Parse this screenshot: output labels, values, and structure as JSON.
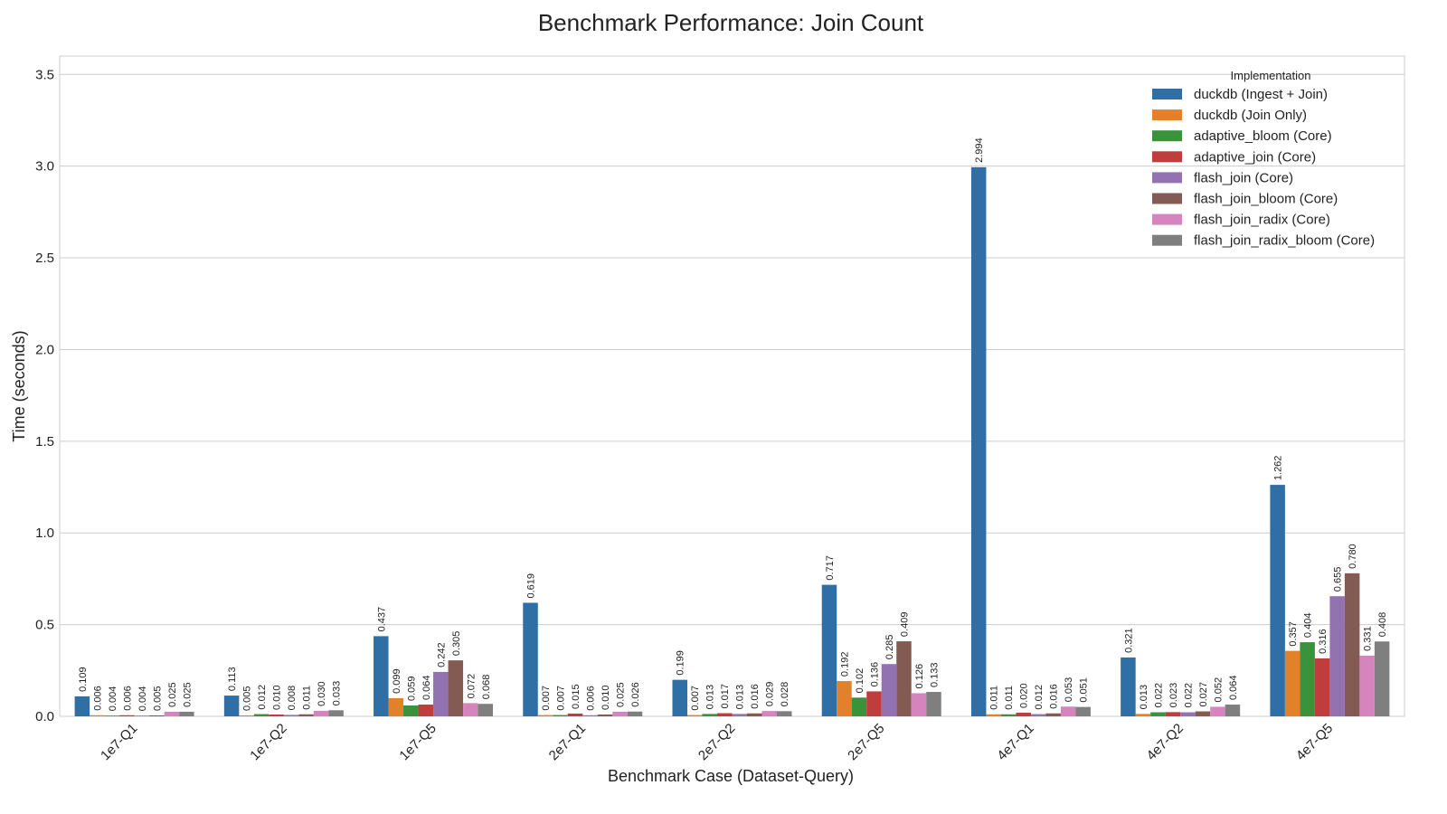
{
  "chart_data": {
    "type": "bar",
    "title": "Benchmark Performance: Join Count",
    "xlabel": "Benchmark Case (Dataset-Query)",
    "ylabel": "Time (seconds)",
    "ylim": [
      0,
      3.6
    ],
    "yticks": [
      "0.0",
      "0.5",
      "1.0",
      "1.5",
      "2.0",
      "2.5",
      "3.0",
      "3.5"
    ],
    "grid": true,
    "legend_title": "Implementation",
    "legend_position": "top-right",
    "categories": [
      "1e7-Q1",
      "1e7-Q2",
      "1e7-Q5",
      "2e7-Q1",
      "2e7-Q2",
      "2e7-Q5",
      "4e7-Q1",
      "4e7-Q2",
      "4e7-Q5"
    ],
    "series": [
      {
        "name": "duckdb (Ingest + Join)",
        "color": "#2f6fa5",
        "values": [
          0.109,
          0.113,
          0.437,
          0.619,
          0.199,
          0.717,
          2.994,
          0.321,
          1.262
        ],
        "labels": [
          "0.109",
          "0.113",
          "0.437",
          "0.619",
          "0.199",
          "0.717",
          "2.994",
          "0.321",
          "1.262"
        ]
      },
      {
        "name": "duckdb (Join Only)",
        "color": "#e1812c",
        "values": [
          0.006,
          0.005,
          0.099,
          0.007,
          0.007,
          0.192,
          0.011,
          0.013,
          0.357
        ],
        "labels": [
          "0.006",
          "0.005",
          "0.099",
          "0.007",
          "0.007",
          "0.192",
          "0.011",
          "0.013",
          "0.357"
        ]
      },
      {
        "name": "adaptive_bloom (Core)",
        "color": "#3a923a",
        "values": [
          0.004,
          0.012,
          0.059,
          0.007,
          0.013,
          0.102,
          0.011,
          0.022,
          0.404
        ],
        "labels": [
          "0.004",
          "0.012",
          "0.059",
          "0.007",
          "0.013",
          "0.102",
          "0.011",
          "0.022",
          "0.404"
        ]
      },
      {
        "name": "adaptive_join (Core)",
        "color": "#c03d3e",
        "values": [
          0.006,
          0.01,
          0.064,
          0.015,
          0.017,
          0.136,
          0.02,
          0.023,
          0.316
        ],
        "labels": [
          "0.006",
          "0.010",
          "0.064",
          "0.015",
          "0.017",
          "0.136",
          "0.020",
          "0.023",
          "0.316"
        ]
      },
      {
        "name": "flash_join (Core)",
        "color": "#9372b2",
        "values": [
          0.004,
          0.008,
          0.242,
          0.006,
          0.013,
          0.285,
          0.012,
          0.022,
          0.655
        ],
        "labels": [
          "0.004",
          "0.008",
          "0.242",
          "0.006",
          "0.013",
          "0.285",
          "0.012",
          "0.022",
          "0.655"
        ]
      },
      {
        "name": "flash_join_bloom (Core)",
        "color": "#845b53",
        "values": [
          0.005,
          0.011,
          0.305,
          0.01,
          0.016,
          0.409,
          0.016,
          0.027,
          0.78
        ],
        "labels": [
          "0.005",
          "0.011",
          "0.305",
          "0.010",
          "0.016",
          "0.409",
          "0.016",
          "0.027",
          "0.780"
        ]
      },
      {
        "name": "flash_join_radix (Core)",
        "color": "#d684bd",
        "values": [
          0.025,
          0.03,
          0.072,
          0.025,
          0.029,
          0.126,
          0.053,
          0.052,
          0.331
        ],
        "labels": [
          "0.025",
          "0.030",
          "0.072",
          "0.025",
          "0.029",
          "0.126",
          "0.053",
          "0.052",
          "0.331"
        ]
      },
      {
        "name": "flash_join_radix_bloom (Core)",
        "color": "#7f7f7f",
        "values": [
          0.025,
          0.033,
          0.068,
          0.026,
          0.028,
          0.133,
          0.051,
          0.064,
          0.408
        ],
        "labels": [
          "0.025",
          "0.033",
          "0.068",
          "0.026",
          "0.028",
          "0.133",
          "0.051",
          "0.064",
          "0.408"
        ]
      }
    ]
  }
}
